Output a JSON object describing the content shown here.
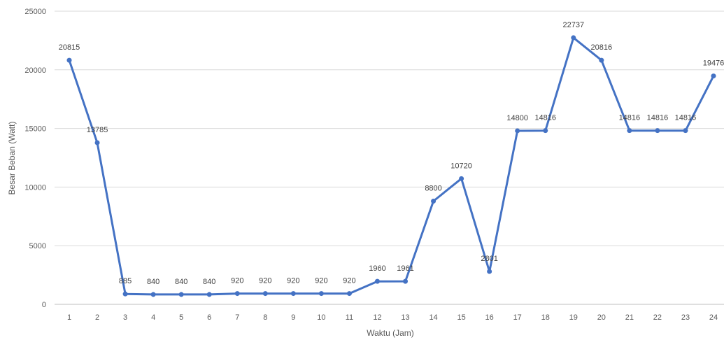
{
  "chart_data": {
    "type": "line",
    "title": "",
    "xlabel": "Waktu (Jam)",
    "ylabel": "Besar Beban (Watt)",
    "ylim": [
      0,
      25000
    ],
    "yticks": [
      "0",
      "5000",
      "10000",
      "15000",
      "20000",
      "25000"
    ],
    "grid": true,
    "legend": "none",
    "line_color": "#4472C4",
    "categories": [
      "1",
      "2",
      "3",
      "4",
      "5",
      "6",
      "7",
      "8",
      "9",
      "10",
      "11",
      "12",
      "13",
      "14",
      "15",
      "16",
      "17",
      "18",
      "19",
      "20",
      "21",
      "22",
      "23",
      "24"
    ],
    "series": [
      {
        "values": [
          20815,
          13785,
          885,
          840,
          840,
          840,
          920,
          920,
          920,
          920,
          920,
          1960,
          1961,
          8800,
          10720,
          2801,
          14800,
          14816,
          22737,
          20816,
          14816,
          14816,
          14816,
          19476
        ]
      }
    ],
    "data_labels": [
      "20815",
      "13785",
      "885",
      "840",
      "840",
      "840",
      "920",
      "920",
      "920",
      "920",
      "920",
      "1960",
      "1961",
      "8800",
      "10720",
      "2801",
      "14800",
      "14816",
      "22737",
      "20816",
      "14816",
      "14816",
      "14816",
      "19476"
    ]
  }
}
